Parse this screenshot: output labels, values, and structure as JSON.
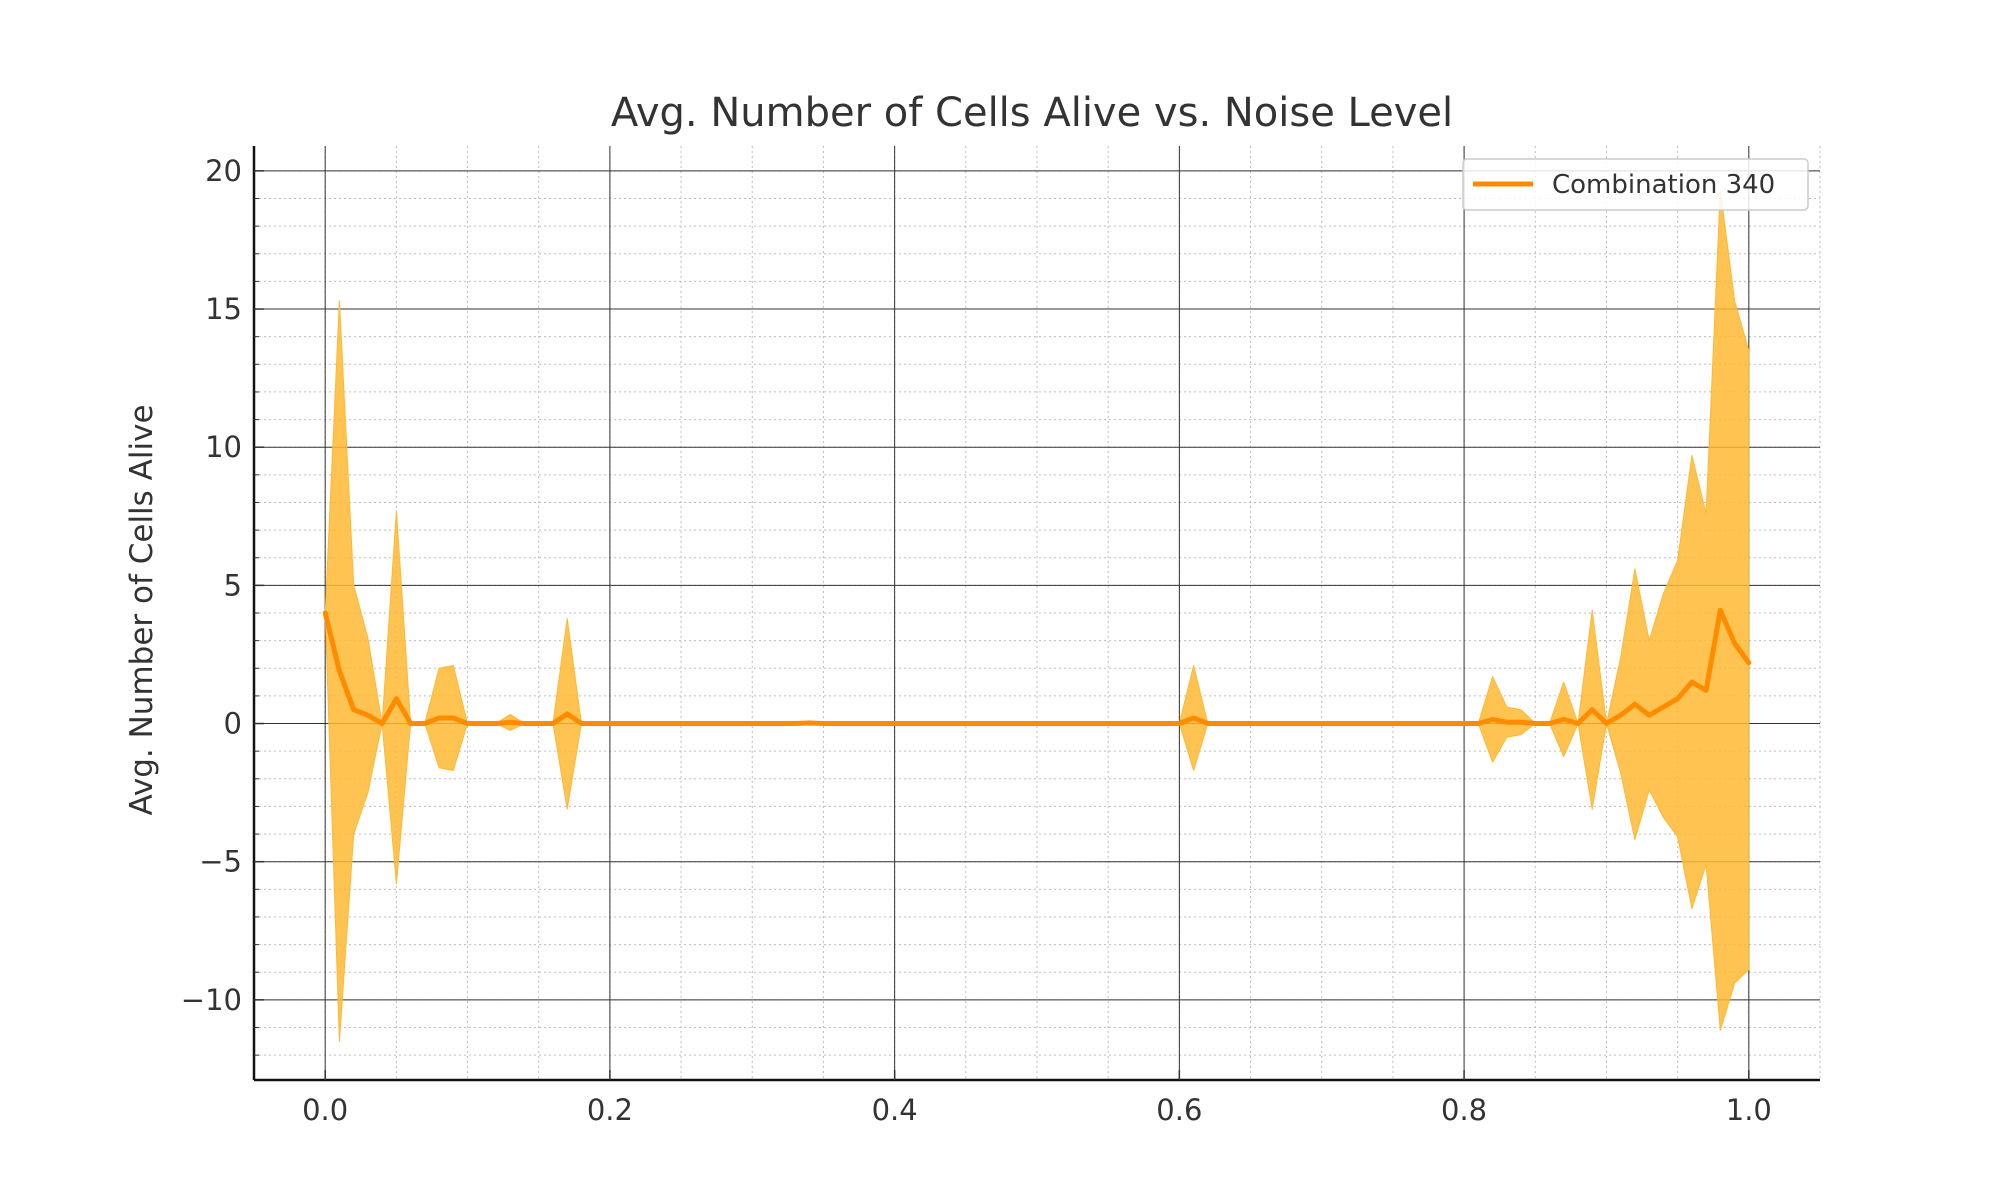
{
  "chart_data": {
    "type": "area",
    "title": "Avg. Number of Cells Alive vs. Noise Level",
    "xlabel": "",
    "ylabel": "Avg. Number of Cells Alive",
    "xlim": [
      -0.05,
      1.05
    ],
    "ylim": [
      -12.9,
      20.9
    ],
    "x_ticks": [
      0.0,
      0.2,
      0.4,
      0.6,
      0.8,
      1.0
    ],
    "x_tick_labels": [
      "0.0",
      "0.2",
      "0.4",
      "0.6",
      "0.8",
      "1.0"
    ],
    "y_ticks": [
      -10,
      -5,
      0,
      5,
      10,
      15,
      20
    ],
    "y_tick_labels": [
      "−10",
      "−5",
      "0",
      "5",
      "10",
      "15",
      "20"
    ],
    "grid": true,
    "legend_position": "top-right",
    "series": [
      {
        "name": "Combination 340",
        "color": "#ff8c00",
        "band_color": "#ffb833",
        "points": [
          {
            "x": 0.0,
            "y": 4.0,
            "lo": 4.0,
            "hi": 4.0
          },
          {
            "x": 0.01,
            "y": 1.9,
            "lo": -11.5,
            "hi": 15.3
          },
          {
            "x": 0.02,
            "y": 0.5,
            "lo": -4.0,
            "hi": 5.0
          },
          {
            "x": 0.03,
            "y": 0.3,
            "lo": -2.5,
            "hi": 3.1
          },
          {
            "x": 0.04,
            "y": 0.0,
            "lo": 0.0,
            "hi": 0.0
          },
          {
            "x": 0.05,
            "y": 0.9,
            "lo": -5.8,
            "hi": 7.7
          },
          {
            "x": 0.06,
            "y": 0.0,
            "lo": 0.0,
            "hi": 0.0
          },
          {
            "x": 0.07,
            "y": 0.0,
            "lo": 0.0,
            "hi": 0.0
          },
          {
            "x": 0.08,
            "y": 0.2,
            "lo": -1.6,
            "hi": 2.0
          },
          {
            "x": 0.09,
            "y": 0.2,
            "lo": -1.7,
            "hi": 2.1
          },
          {
            "x": 0.1,
            "y": 0.0,
            "lo": 0.0,
            "hi": 0.0
          },
          {
            "x": 0.11,
            "y": 0.0,
            "lo": 0.0,
            "hi": 0.0
          },
          {
            "x": 0.12,
            "y": 0.0,
            "lo": 0.0,
            "hi": 0.0
          },
          {
            "x": 0.13,
            "y": 0.04,
            "lo": -0.25,
            "hi": 0.33
          },
          {
            "x": 0.14,
            "y": 0.0,
            "lo": 0.0,
            "hi": 0.0
          },
          {
            "x": 0.15,
            "y": 0.0,
            "lo": 0.0,
            "hi": 0.0
          },
          {
            "x": 0.16,
            "y": 0.0,
            "lo": 0.0,
            "hi": 0.0
          },
          {
            "x": 0.17,
            "y": 0.35,
            "lo": -3.1,
            "hi": 3.8
          },
          {
            "x": 0.18,
            "y": 0.0,
            "lo": 0.0,
            "hi": 0.0
          },
          {
            "x": 0.33,
            "y": 0.0,
            "lo": 0.0,
            "hi": 0.0
          },
          {
            "x": 0.34,
            "y": 0.02,
            "lo": -0.05,
            "hi": 0.09
          },
          {
            "x": 0.35,
            "y": 0.0,
            "lo": 0.0,
            "hi": 0.0
          },
          {
            "x": 0.6,
            "y": 0.0,
            "lo": 0.0,
            "hi": 0.0
          },
          {
            "x": 0.61,
            "y": 0.2,
            "lo": -1.7,
            "hi": 2.1
          },
          {
            "x": 0.62,
            "y": 0.0,
            "lo": 0.0,
            "hi": 0.0
          },
          {
            "x": 0.81,
            "y": 0.0,
            "lo": 0.0,
            "hi": 0.0
          },
          {
            "x": 0.82,
            "y": 0.15,
            "lo": -1.4,
            "hi": 1.7
          },
          {
            "x": 0.83,
            "y": 0.05,
            "lo": -0.5,
            "hi": 0.6
          },
          {
            "x": 0.84,
            "y": 0.05,
            "lo": -0.4,
            "hi": 0.5
          },
          {
            "x": 0.85,
            "y": 0.0,
            "lo": 0.0,
            "hi": 0.0
          },
          {
            "x": 0.86,
            "y": 0.0,
            "lo": 0.0,
            "hi": 0.0
          },
          {
            "x": 0.87,
            "y": 0.15,
            "lo": -1.2,
            "hi": 1.5
          },
          {
            "x": 0.88,
            "y": 0.0,
            "lo": 0.0,
            "hi": 0.0
          },
          {
            "x": 0.89,
            "y": 0.5,
            "lo": -3.1,
            "hi": 4.1
          },
          {
            "x": 0.9,
            "y": 0.0,
            "lo": 0.0,
            "hi": 0.0
          },
          {
            "x": 0.91,
            "y": 0.3,
            "lo": -1.8,
            "hi": 2.4
          },
          {
            "x": 0.92,
            "y": 0.7,
            "lo": -4.2,
            "hi": 5.6
          },
          {
            "x": 0.93,
            "y": 0.3,
            "lo": -2.4,
            "hi": 3.0
          },
          {
            "x": 0.94,
            "y": 0.6,
            "lo": -3.4,
            "hi": 4.7
          },
          {
            "x": 0.95,
            "y": 0.9,
            "lo": -4.1,
            "hi": 5.9
          },
          {
            "x": 0.96,
            "y": 1.5,
            "lo": -6.7,
            "hi": 9.7
          },
          {
            "x": 0.97,
            "y": 1.2,
            "lo": -5.1,
            "hi": 7.6
          },
          {
            "x": 0.98,
            "y": 4.1,
            "lo": -11.1,
            "hi": 19.3
          },
          {
            "x": 0.99,
            "y": 2.9,
            "lo": -9.4,
            "hi": 15.3
          },
          {
            "x": 1.0,
            "y": 2.2,
            "lo": -8.9,
            "hi": 13.5
          }
        ]
      }
    ]
  }
}
